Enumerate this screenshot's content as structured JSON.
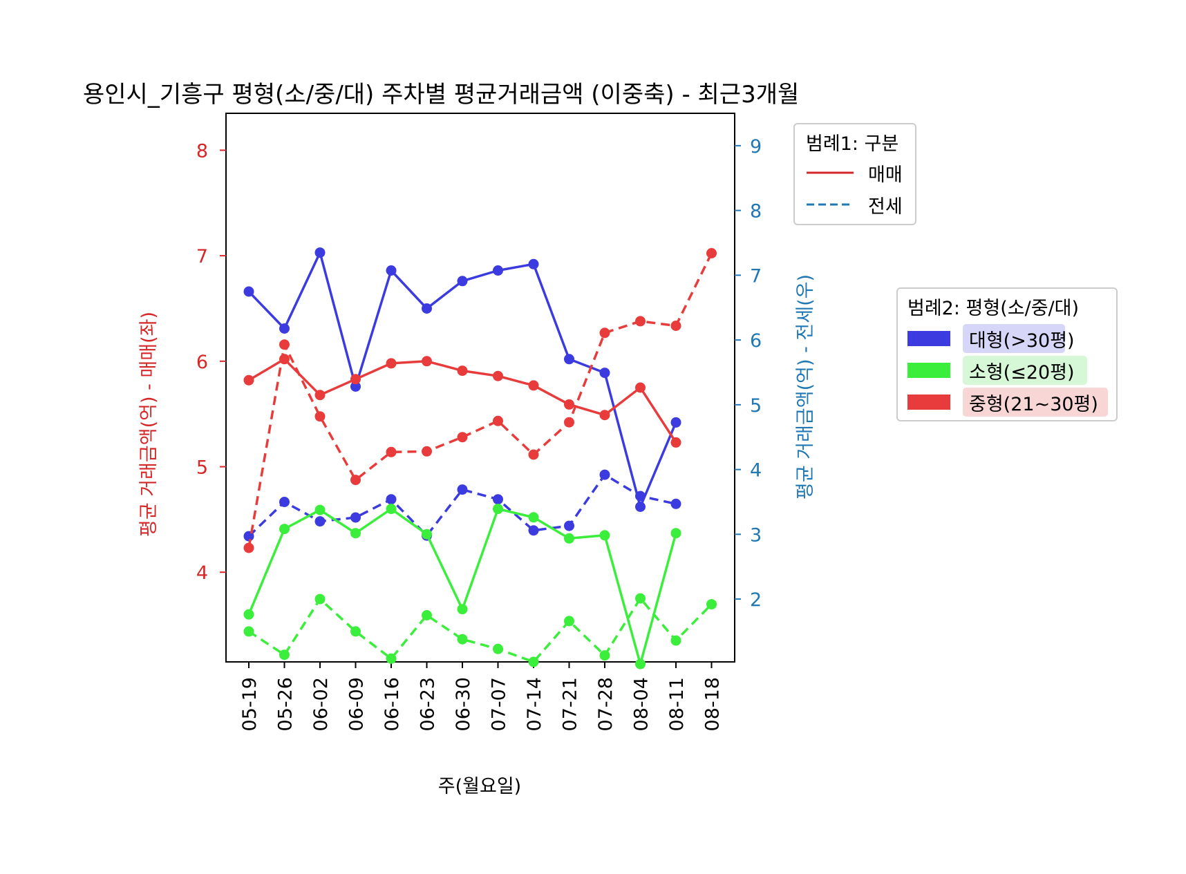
{
  "chart_data": {
    "type": "line",
    "title": "용인시_기흥구 평형(소/중/대) 주차별 평균거래금액 (이중축) - 최근3개월",
    "xlabel": "주(월요일)",
    "ylabel_left": "평균 거래금액(억) - 매매(좌)",
    "ylabel_right": "평균 거래금액(억) - 전세(우)",
    "categories": [
      "05-19",
      "05-26",
      "06-02",
      "06-09",
      "06-16",
      "06-23",
      "06-30",
      "07-07",
      "07-14",
      "07-21",
      "07-28",
      "08-04",
      "08-11",
      "08-18"
    ],
    "ylim_left": [
      3.15,
      8.35
    ],
    "yticks_left": [
      4,
      5,
      6,
      7,
      8
    ],
    "ylim_right": [
      1.03,
      9.5
    ],
    "yticks_right": [
      2,
      3,
      4,
      5,
      6,
      7,
      8,
      9
    ],
    "colors": {
      "left_axis": "#d62728",
      "right_axis": "#1f77b4",
      "large": "#3b3bdf",
      "small": "#3bee3b",
      "medium": "#e83b3b"
    },
    "series": [
      {
        "name": "대형(>30평)",
        "group": "large",
        "kind": "매매",
        "axis": "left",
        "values": [
          6.66,
          6.31,
          7.03,
          5.76,
          6.86,
          6.5,
          6.76,
          6.86,
          6.92,
          6.02,
          5.89,
          4.62,
          5.42,
          null
        ]
      },
      {
        "name": "대형(>30평)",
        "group": "large",
        "kind": "전세",
        "axis": "right",
        "values": [
          2.97,
          3.5,
          3.2,
          3.26,
          3.54,
          2.98,
          3.69,
          3.54,
          3.06,
          3.13,
          3.92,
          3.59,
          3.47,
          null
        ]
      },
      {
        "name": "소형(≤20평)",
        "group": "small",
        "kind": "매매",
        "axis": "left",
        "values": [
          3.6,
          4.41,
          4.59,
          4.37,
          4.6,
          4.36,
          3.65,
          4.6,
          4.52,
          4.32,
          4.35,
          3.13,
          4.37,
          null
        ]
      },
      {
        "name": "소형(≤20평)",
        "group": "small",
        "kind": "전세",
        "axis": "right",
        "values": [
          1.5,
          1.14,
          2.0,
          1.5,
          1.08,
          1.75,
          1.38,
          1.23,
          1.03,
          1.66,
          1.13,
          2.01,
          1.36,
          1.92
        ]
      },
      {
        "name": "중형(21~30평)",
        "group": "medium",
        "kind": "매매",
        "axis": "left",
        "values": [
          5.82,
          6.02,
          5.68,
          5.83,
          5.98,
          6.0,
          5.91,
          5.86,
          5.77,
          5.59,
          5.49,
          5.75,
          5.23,
          null
        ]
      },
      {
        "name": "중형(21~30평)",
        "group": "medium",
        "kind": "전세",
        "axis": "right",
        "values": [
          2.79,
          5.93,
          4.82,
          3.84,
          4.27,
          4.28,
          4.5,
          4.75,
          4.23,
          4.73,
          6.11,
          6.29,
          6.22,
          7.34
        ]
      }
    ],
    "legend1": {
      "title": "범례1: 구분",
      "entries": [
        {
          "label": "매매",
          "style": "solid",
          "color": "#d62728"
        },
        {
          "label": "전세",
          "style": "dashed",
          "color": "#1f77b4"
        }
      ],
      "placement": "right-top"
    },
    "legend2": {
      "title": "범례2: 평형(소/중/대)",
      "entries": [
        {
          "label": "대형(>30평)",
          "color": "#3b3bdf",
          "bg": "#d6d6f8"
        },
        {
          "label": "소형(≤20평)",
          "color": "#3bee3b",
          "bg": "#d6f8d6"
        },
        {
          "label": "중형(21~30평)",
          "color": "#e83b3b",
          "bg": "#f8d6d6"
        }
      ],
      "placement": "right-middle"
    },
    "grid": false
  }
}
